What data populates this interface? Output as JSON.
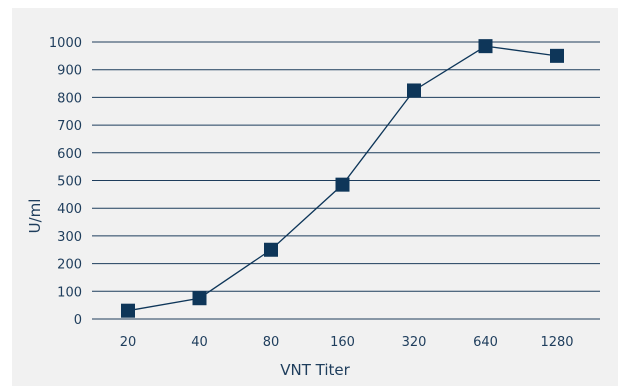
{
  "chart_data": {
    "type": "line",
    "categories": [
      "20",
      "40",
      "80",
      "160",
      "320",
      "640",
      "1280"
    ],
    "series": [
      {
        "values": [
          30,
          75,
          250,
          485,
          825,
          985,
          950
        ]
      }
    ],
    "title": "",
    "xlabel": "VNT Titer",
    "ylabel": "U/ml",
    "ylim": [
      0,
      1000
    ],
    "yticks": [
      0,
      100,
      200,
      300,
      400,
      500,
      600,
      700,
      800,
      900,
      1000
    ],
    "grid": "horizontal",
    "legend": "none",
    "colors": {
      "series": "#0e3659",
      "grid": "#1e3d5c",
      "background": "#f1f1f1",
      "text": "#1e3d5c"
    },
    "marker": "square"
  }
}
